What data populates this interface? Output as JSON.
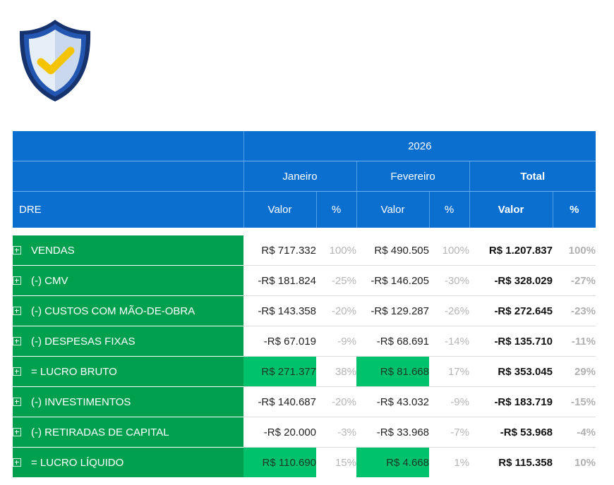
{
  "logo": {
    "icon": "shield-check-icon",
    "colors": {
      "shield": "#1b3f8a",
      "inner": "#dde8f5",
      "check": "#f5c400"
    }
  },
  "colors": {
    "header": "#0a6fce",
    "label": "#00a04f",
    "highlight": "#00c16c"
  },
  "table": {
    "year": "2026",
    "months": [
      "Janeiro",
      "Fevereiro"
    ],
    "total_label": "Total",
    "row_header": "DRE",
    "value_label": "Valor",
    "pct_label": "%",
    "rows": [
      {
        "label": "VENDAS",
        "jan_val": "R$ 717.332",
        "jan_pct": "100%",
        "feb_val": "R$ 490.505",
        "feb_pct": "100%",
        "tot_val": "R$ 1.207.837",
        "tot_pct": "100%"
      },
      {
        "label": "(-) CMV",
        "jan_val": "-R$ 181.824",
        "jan_pct": "-25%",
        "feb_val": "-R$ 146.205",
        "feb_pct": "-30%",
        "tot_val": "-R$ 328.029",
        "tot_pct": "-27%"
      },
      {
        "label": "(-) CUSTOS COM MÃO-DE-OBRA",
        "jan_val": "-R$ 143.358",
        "jan_pct": "-20%",
        "feb_val": "-R$ 129.287",
        "feb_pct": "-26%",
        "tot_val": "-R$ 272.645",
        "tot_pct": "-23%"
      },
      {
        "label": "(-) DESPESAS FIXAS",
        "jan_val": "-R$ 67.019",
        "jan_pct": "-9%",
        "feb_val": "-R$ 68.691",
        "feb_pct": "-14%",
        "tot_val": "-R$ 135.710",
        "tot_pct": "-11%"
      },
      {
        "label": "= LUCRO BRUTO",
        "jan_val": "R$ 271.377",
        "jan_pct": "38%",
        "feb_val": "R$ 81.668",
        "feb_pct": "17%",
        "tot_val": "R$ 353.045",
        "tot_pct": "29%"
      },
      {
        "label": "(-) INVESTIMENTOS",
        "jan_val": "-R$ 140.687",
        "jan_pct": "-20%",
        "feb_val": "-R$ 43.032",
        "feb_pct": "-9%",
        "tot_val": "-R$ 183.719",
        "tot_pct": "-15%"
      },
      {
        "label": "(-) RETIRADAS DE CAPITAL",
        "jan_val": "-R$ 20.000",
        "jan_pct": "-3%",
        "feb_val": "-R$ 33.968",
        "feb_pct": "-7%",
        "tot_val": "-R$ 53.968",
        "tot_pct": "-4%"
      },
      {
        "label": "= LUCRO LÍQUIDO",
        "jan_val": "R$ 110.690",
        "jan_pct": "15%",
        "feb_val": "R$ 4.668",
        "feb_pct": "1%",
        "tot_val": "R$ 115.358",
        "tot_pct": "10%"
      }
    ]
  }
}
